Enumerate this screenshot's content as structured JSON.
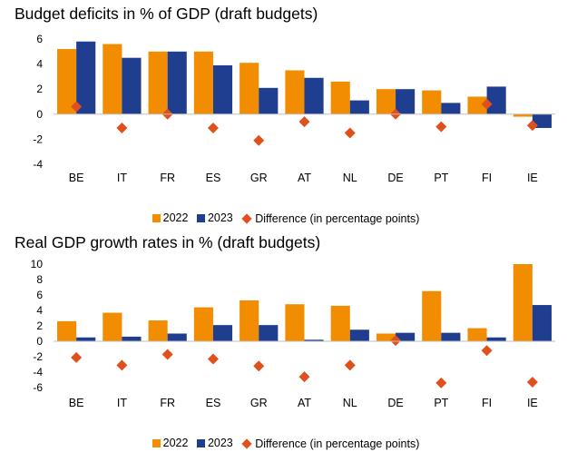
{
  "colors": {
    "y2022": "#F28C00",
    "y2023": "#1F3E8F",
    "difference": "#E0501C"
  },
  "chart_data": [
    {
      "type": "bar",
      "title": "Budget deficits in % of GDP (draft budgets)",
      "categories": [
        "BE",
        "IT",
        "FR",
        "ES",
        "GR",
        "AT",
        "NL",
        "DE",
        "PT",
        "FI",
        "IE"
      ],
      "series": [
        {
          "name": "2022",
          "type": "bar",
          "values": [
            5.2,
            5.6,
            5.0,
            5.0,
            4.1,
            3.5,
            2.6,
            2.0,
            1.9,
            1.4,
            -0.2
          ]
        },
        {
          "name": "2023",
          "type": "bar",
          "values": [
            5.8,
            4.5,
            5.0,
            3.9,
            2.1,
            2.9,
            1.1,
            2.0,
            0.9,
            2.2,
            -1.1
          ]
        },
        {
          "name": "Difference (in percentage points)",
          "type": "scatter",
          "values": [
            0.6,
            -1.1,
            0.0,
            -1.1,
            -2.1,
            -0.6,
            -1.5,
            0.0,
            -1.0,
            0.8,
            -0.9
          ]
        }
      ],
      "yticks": [
        6,
        4,
        2,
        0,
        -2,
        -4
      ],
      "ylim": [
        -4,
        6
      ],
      "grid": false,
      "legend_position": "bottom"
    },
    {
      "type": "bar",
      "title": "Real GDP growth rates in % (draft budgets)",
      "categories": [
        "BE",
        "IT",
        "FR",
        "ES",
        "GR",
        "AT",
        "NL",
        "DE",
        "PT",
        "FI",
        "IE"
      ],
      "series": [
        {
          "name": "2022",
          "type": "bar",
          "values": [
            2.6,
            3.7,
            2.7,
            4.4,
            5.3,
            4.8,
            4.6,
            1.0,
            6.5,
            1.7,
            10.0
          ]
        },
        {
          "name": "2023",
          "type": "bar",
          "values": [
            0.5,
            0.6,
            1.0,
            2.1,
            2.1,
            0.2,
            1.5,
            1.1,
            1.1,
            0.5,
            4.7
          ]
        },
        {
          "name": "Difference (in percentage points)",
          "type": "scatter",
          "values": [
            -2.1,
            -3.1,
            -1.7,
            -2.3,
            -3.2,
            -4.6,
            -3.1,
            0.1,
            -5.4,
            -1.2,
            -5.3
          ]
        }
      ],
      "yticks": [
        10,
        8,
        6,
        4,
        2,
        0,
        -2,
        -4,
        -6
      ],
      "ylim": [
        -6,
        10
      ],
      "grid": false,
      "legend_position": "bottom"
    }
  ]
}
